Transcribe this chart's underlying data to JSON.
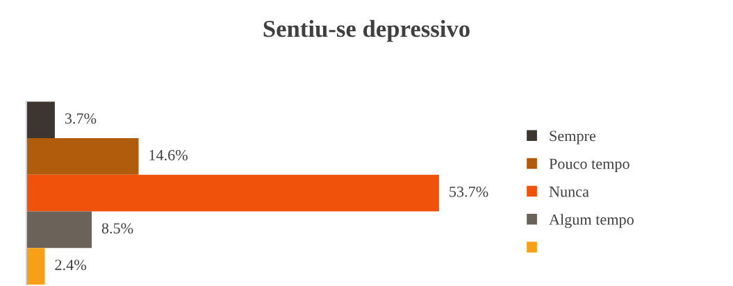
{
  "chart_data": {
    "type": "bar",
    "orientation": "horizontal",
    "title": "Sentiu-se depressivo",
    "categories": [
      null
    ],
    "series": [
      {
        "name": "Sempre",
        "color": "#3f3530",
        "values": [
          3.7
        ],
        "value_labels": [
          "3.7%"
        ]
      },
      {
        "name": "Pouco tempo",
        "color": "#b15c0c",
        "values": [
          14.6
        ],
        "value_labels": [
          "14.6%"
        ]
      },
      {
        "name": "Nunca",
        "color": "#f0520c",
        "values": [
          53.7
        ],
        "value_labels": [
          "53.7%"
        ]
      },
      {
        "name": "Algum tempo",
        "color": "#6b625a",
        "values": [
          8.5
        ],
        "value_labels": [
          "8.5%"
        ]
      },
      {
        "color": "#f6a019",
        "values": [
          2.4
        ],
        "value_labels": [
          "2.4%"
        ]
      }
    ],
    "legend": "right"
  }
}
